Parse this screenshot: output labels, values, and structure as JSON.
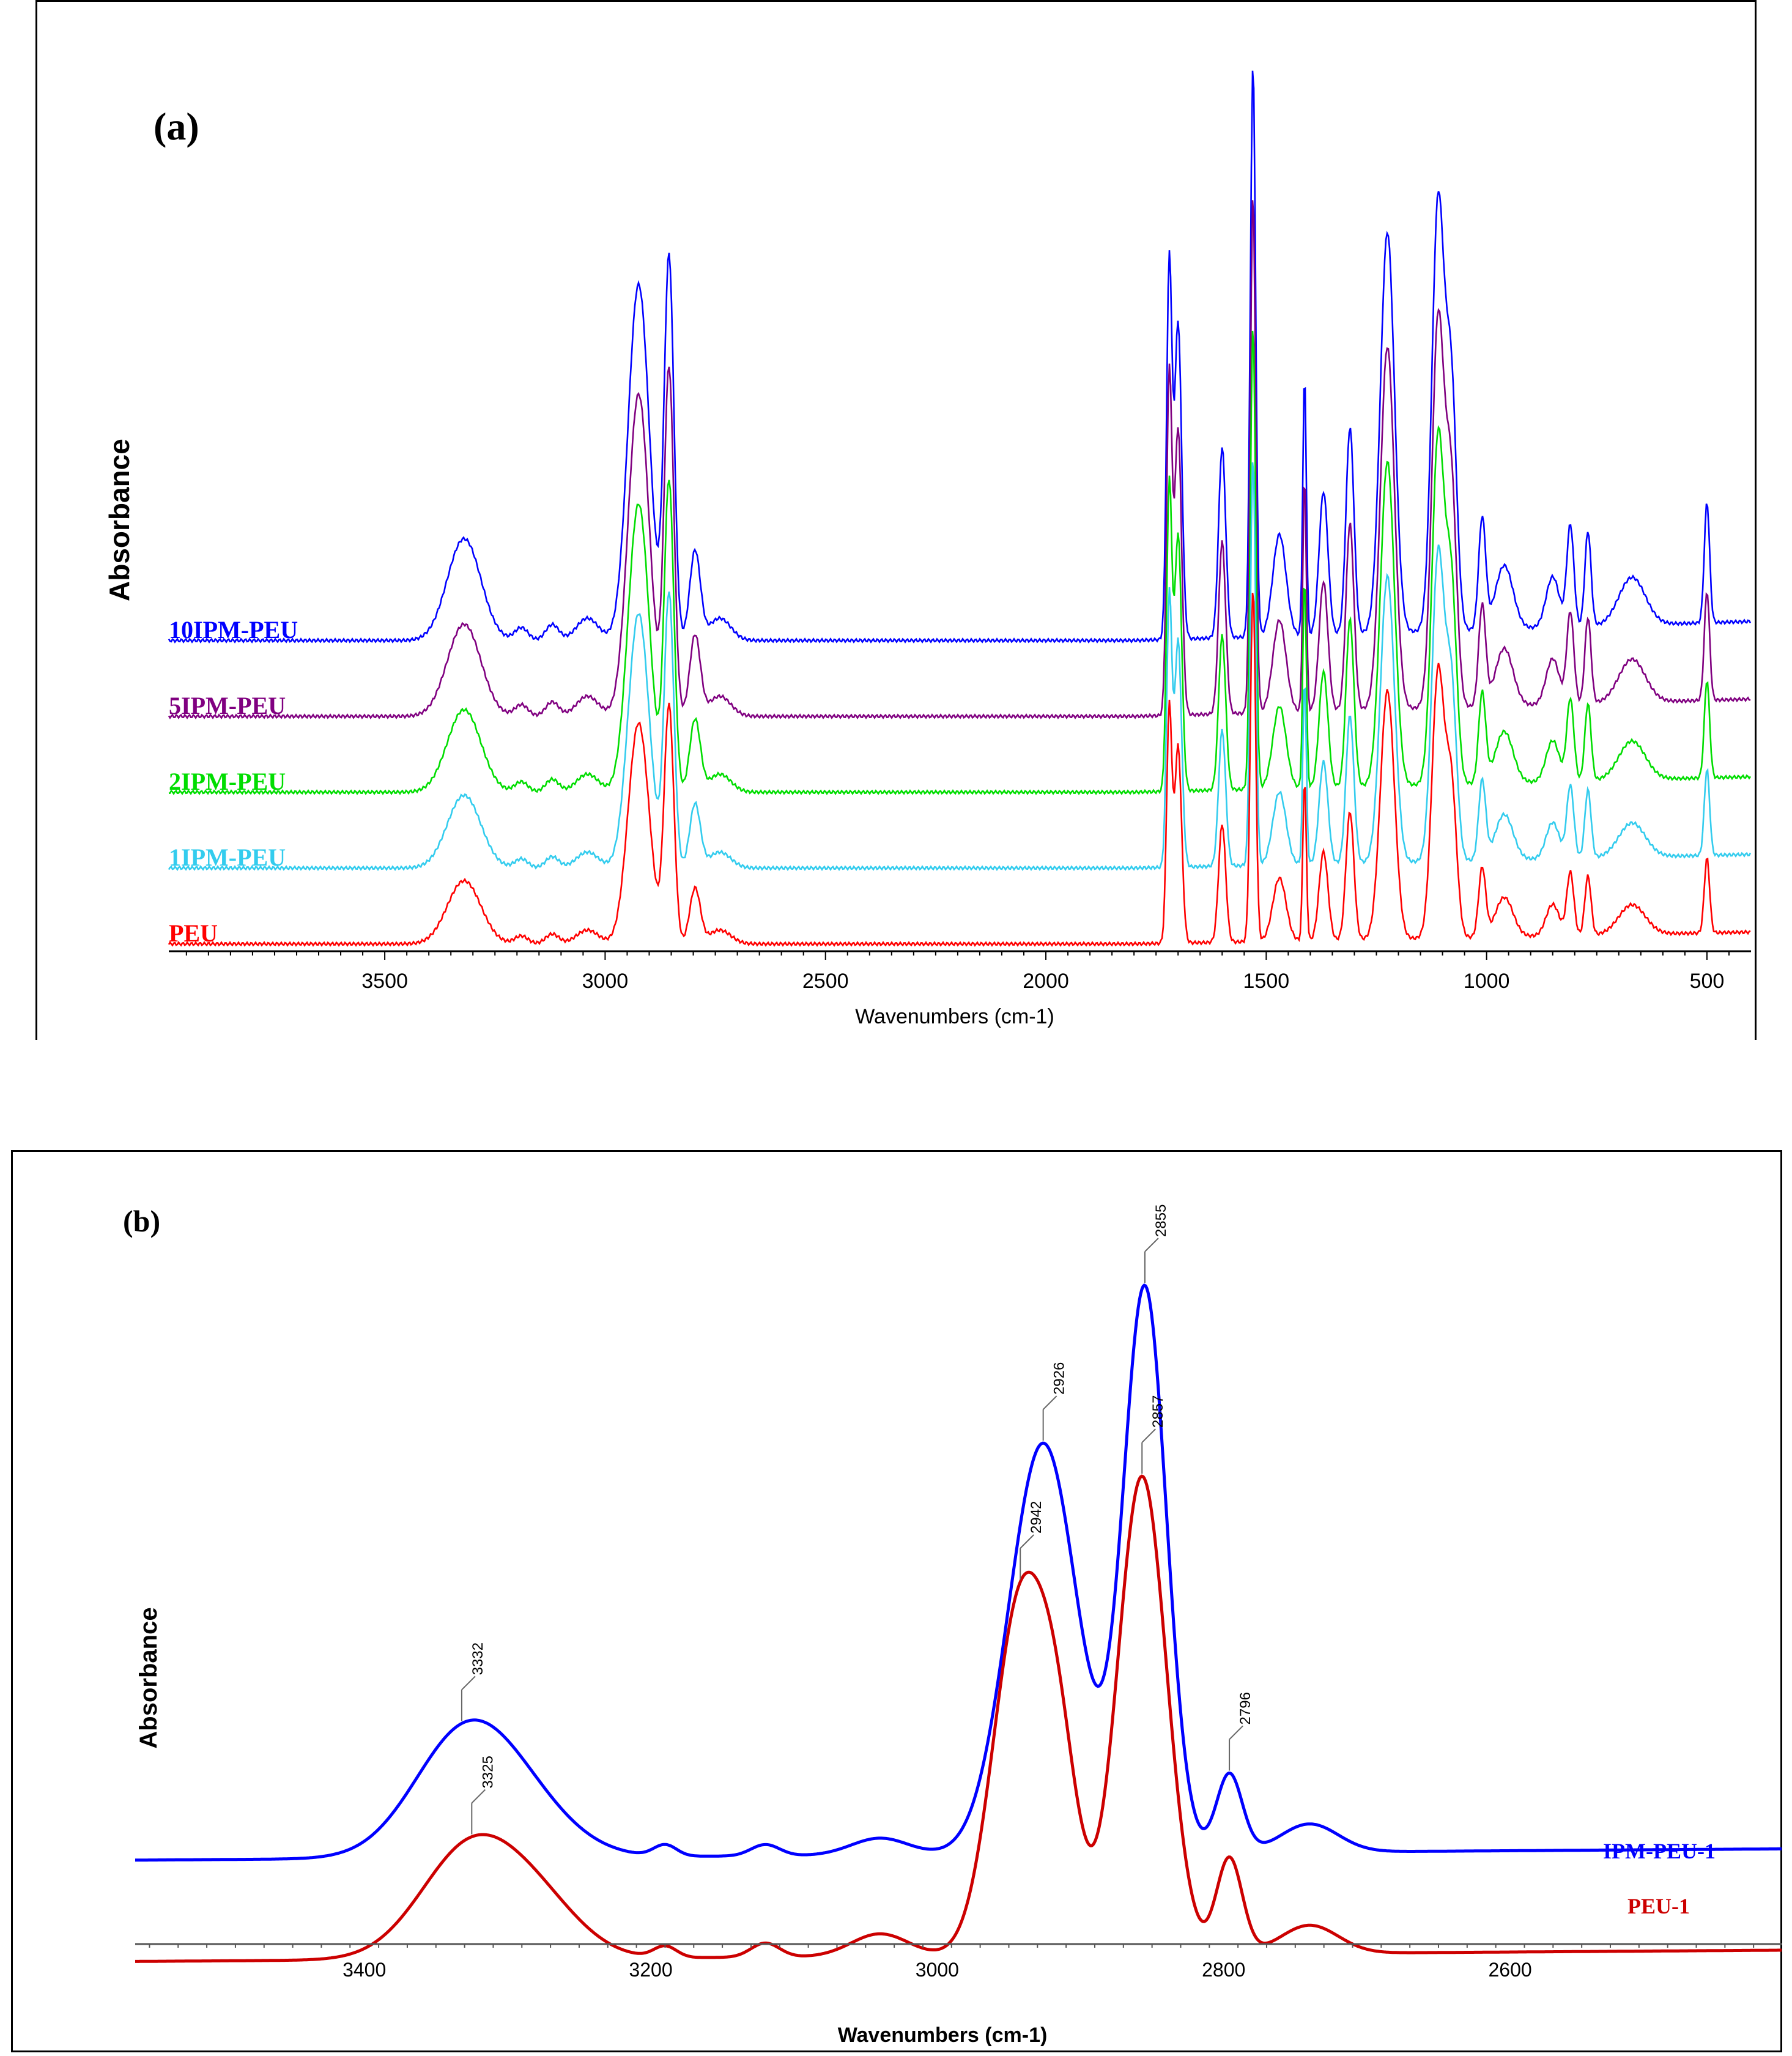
{
  "chart_data": [
    {
      "panel": "(a)",
      "type": "line",
      "xlabel": "Wavenumbers (cm-1)",
      "ylabel": "Absorbance",
      "xlim": [
        3990,
        400
      ],
      "xticks": [
        3500,
        3000,
        2500,
        2000,
        1500,
        1000,
        500
      ],
      "series": [
        {
          "name": "10IPM-PEU",
          "color": "#0000ff",
          "offset": 4
        },
        {
          "name": "5IPM-PEU",
          "color": "#800080",
          "offset": 3
        },
        {
          "name": "2IPM-PEU",
          "color": "#00dd00",
          "offset": 2
        },
        {
          "name": "1IPM-PEU",
          "color": "#33ccee",
          "offset": 1
        },
        {
          "name": "PEU",
          "color": "#ff0000",
          "offset": 0
        }
      ],
      "peaks": [
        {
          "x": 3320,
          "h": 0.32,
          "w": 38
        },
        {
          "x": 3190,
          "h": 0.04,
          "w": 15
        },
        {
          "x": 3120,
          "h": 0.05,
          "w": 15
        },
        {
          "x": 3040,
          "h": 0.07,
          "w": 25
        },
        {
          "x": 2924,
          "h": 1.12,
          "w": 24
        },
        {
          "x": 2855,
          "h": 1.2,
          "w": 11
        },
        {
          "x": 2796,
          "h": 0.28,
          "w": 12
        },
        {
          "x": 2740,
          "h": 0.07,
          "w": 25
        },
        {
          "x": 1720,
          "h": 1.18,
          "w": 6
        },
        {
          "x": 1700,
          "h": 1.0,
          "w": 8
        },
        {
          "x": 1600,
          "h": 0.6,
          "w": 8
        },
        {
          "x": 1530,
          "h": 1.8,
          "w": 6
        },
        {
          "x": 1470,
          "h": 0.32,
          "w": 15
        },
        {
          "x": 1413,
          "h": 0.82,
          "w": 4
        },
        {
          "x": 1370,
          "h": 0.45,
          "w": 10
        },
        {
          "x": 1310,
          "h": 0.65,
          "w": 9
        },
        {
          "x": 1225,
          "h": 1.26,
          "w": 16
        },
        {
          "x": 1110,
          "h": 1.35,
          "w": 14
        },
        {
          "x": 1080,
          "h": 0.75,
          "w": 12
        },
        {
          "x": 1010,
          "h": 0.35,
          "w": 8
        },
        {
          "x": 960,
          "h": 0.2,
          "w": 20
        },
        {
          "x": 850,
          "h": 0.16,
          "w": 15
        },
        {
          "x": 810,
          "h": 0.32,
          "w": 8
        },
        {
          "x": 770,
          "h": 0.3,
          "w": 7
        },
        {
          "x": 670,
          "h": 0.15,
          "w": 30
        },
        {
          "x": 500,
          "h": 0.38,
          "w": 6
        }
      ]
    },
    {
      "panel": "(b)",
      "type": "line",
      "xlabel": "Wavenumbers (cm-1)",
      "ylabel": "Absorbance",
      "xlim": [
        3560,
        2410
      ],
      "xticks": [
        3400,
        3200,
        3000,
        2800,
        2600
      ],
      "series": [
        {
          "name": "IPM-PEU-1",
          "color": "#0000ff",
          "offset": 0.18,
          "peaks": [
            {
              "x": 3332,
              "h": 0.2,
              "w": 35
            },
            {
              "x": 3290,
              "h": 0.08,
              "w": 35
            },
            {
              "x": 3190,
              "h": 0.02,
              "w": 8
            },
            {
              "x": 3120,
              "h": 0.02,
              "w": 10
            },
            {
              "x": 3040,
              "h": 0.03,
              "w": 20
            },
            {
              "x": 2926,
              "h": 0.73,
              "w": 24
            },
            {
              "x": 2855,
              "h": 1.0,
              "w": 15
            },
            {
              "x": 2796,
              "h": 0.14,
              "w": 9
            },
            {
              "x": 2740,
              "h": 0.05,
              "w": 20
            }
          ],
          "annotations": [
            {
              "label": "3332",
              "x": 3332
            },
            {
              "label": "2926",
              "x": 2926
            },
            {
              "label": "2855",
              "x": 2855
            },
            {
              "label": "2796",
              "x": 2796
            }
          ]
        },
        {
          "name": "PEU-1",
          "color": "#cc0000",
          "offset": 0.0,
          "peaks": [
            {
              "x": 3325,
              "h": 0.2,
              "w": 35
            },
            {
              "x": 3275,
              "h": 0.07,
              "w": 30
            },
            {
              "x": 3190,
              "h": 0.02,
              "w": 8
            },
            {
              "x": 3120,
              "h": 0.025,
              "w": 10
            },
            {
              "x": 3040,
              "h": 0.04,
              "w": 20
            },
            {
              "x": 2942,
              "h": 0.62,
              "w": 19
            },
            {
              "x": 2915,
              "h": 0.28,
              "w": 14
            },
            {
              "x": 2857,
              "h": 0.85,
              "w": 17
            },
            {
              "x": 2796,
              "h": 0.17,
              "w": 9
            },
            {
              "x": 2740,
              "h": 0.05,
              "w": 20
            }
          ],
          "annotations": [
            {
              "label": "3325",
              "x": 3325
            },
            {
              "label": "2942",
              "x": 2942
            },
            {
              "label": "2857",
              "x": 2857
            }
          ]
        }
      ]
    }
  ]
}
